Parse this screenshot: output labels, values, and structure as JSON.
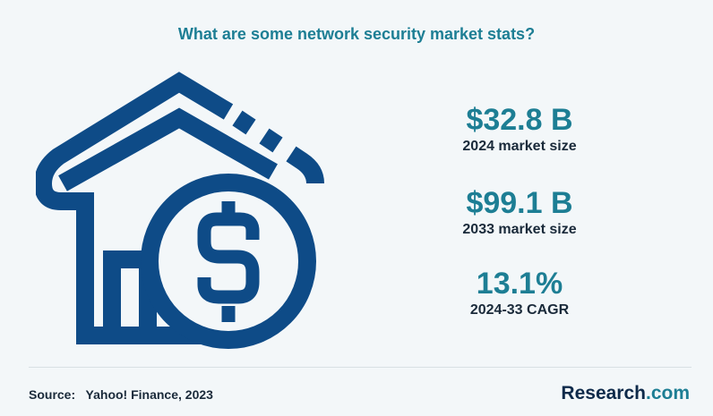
{
  "title": "What are some network security market stats?",
  "stats": [
    {
      "value": "$32.8 B",
      "label": "2024 market size"
    },
    {
      "value": "$99.1 B",
      "label": "2033 market size"
    },
    {
      "value": "13.1%",
      "label": "2024-33 CAGR"
    }
  ],
  "footer": {
    "source_label": "Source:",
    "source_text": "Yahoo! Finance, 2023",
    "brand_main": "Research",
    "brand_suffix": ".com"
  },
  "illustration": {
    "icon": "house-dollar-icon",
    "color": "#0e4b87"
  },
  "colors": {
    "accent": "#1d7e94",
    "background": "#f3f7f9",
    "text": "#1a2a3a"
  }
}
